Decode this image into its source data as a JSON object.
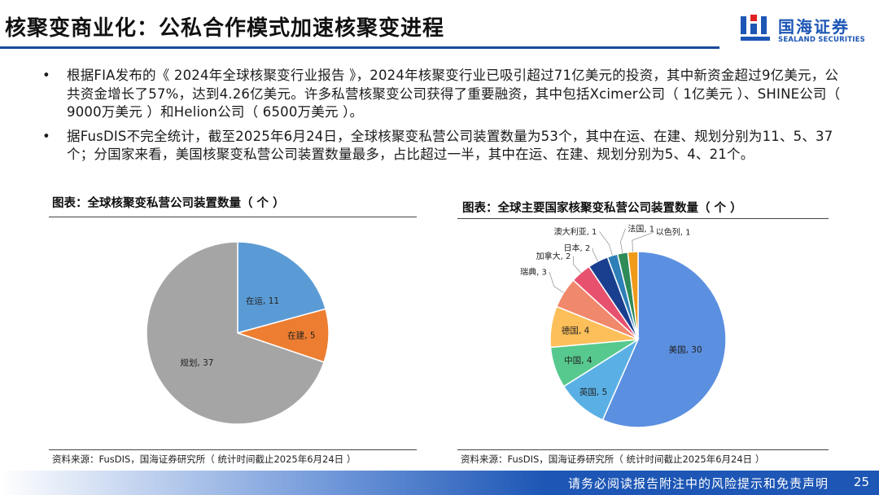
{
  "title": "核聚变商业化：公私合作模式加速核聚变进程",
  "logo": {
    "cn": "国海证券",
    "en": "SEALAND SECURITIES"
  },
  "bullets": [
    {
      "dot": "•",
      "text": "根据FIA发布的《 2024年全球核聚变行业报告 》，2024年核聚变行业已吸引超过71亿美元的投资，其中新资金超过9亿美元，公共资金增长了57%，达到4.26亿美元。许多私营核聚变公司获得了重要融资，其中包括Xcimer公司（ 1亿美元 ）、SHINE公司（ 9000万美元 ）和Helion公司（ 6500万美元 ）。"
    },
    {
      "dot": "•",
      "text": "据FusDIS不完全统计，截至2025年6月24日，全球核聚变私营公司装置数量为53个，其中在运、在建、规划分别为11、5、37个；分国家来看，美国核聚变私营公司装置数量最多，占比超过一半，其中在运、在建、规划分别为5、4、21个。"
    }
  ],
  "left": {
    "caption": "图表：全球核聚变私营公司装置数量（ 个 ）",
    "source": "资料来源：FusDIS，国海证券研究所（ 统计时间截止2025年6月24日 ）"
  },
  "right": {
    "caption": "图表：全球主要国家核聚变私营公司装置数量（ 个 ）",
    "source": "资料来源：FusDIS，国海证券研究所（ 统计时间截止2025年6月24日 ）"
  },
  "chart_data": [
    {
      "type": "pie",
      "title": "图表：全球核聚变私营公司装置数量（ 个 ）",
      "categories": [
        "在运",
        "在建",
        "规划"
      ],
      "values": [
        11,
        5,
        37
      ],
      "labels": [
        "在运, 11",
        "在建, 5",
        "规划, 37"
      ],
      "colors": [
        "#5b9bd5",
        "#ed7d31",
        "#a5a5a5"
      ]
    },
    {
      "type": "pie",
      "title": "图表：全球主要国家核聚变私营公司装置数量（ 个 ）",
      "categories": [
        "美国",
        "英国",
        "中国",
        "德国",
        "瑞典",
        "加拿大",
        "日本",
        "澳大利亚",
        "法国",
        "以色列"
      ],
      "values": [
        30,
        5,
        4,
        4,
        3,
        2,
        2,
        1,
        1,
        1
      ],
      "labels": [
        "美国, 30",
        "英国, 5",
        "中国, 4",
        "德国, 4",
        "瑞典, 3",
        "加拿大, 2",
        "日本, 2",
        "澳大利亚, 1",
        "法国, 1",
        "以色列, 1"
      ],
      "colors": [
        "#5b8fe0",
        "#5ab0e4",
        "#57c98e",
        "#fcbf5a",
        "#f0886c",
        "#e8516e",
        "#1a3f8f",
        "#2e7fb8",
        "#2e8b57",
        "#f09a1a"
      ]
    }
  ],
  "footer": {
    "disclaimer": "请务必阅读报告附注中的风险提示和免责声明",
    "page": "25"
  }
}
